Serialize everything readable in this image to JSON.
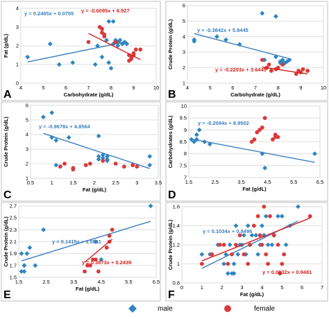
{
  "colors": {
    "male": "#2e86c1",
    "female": "#d93b3b",
    "male_line": "#3a7ebd",
    "female_line": "#d72020"
  },
  "legend": {
    "male_label": "male",
    "female_label": "female"
  },
  "chart_data": [
    {
      "panel": "A",
      "type": "scatter",
      "xlabel": "Carbohydrate (g/dL)",
      "ylabel": "Fat (g/dL)",
      "xlim": [
        4,
        10
      ],
      "ylim": [
        0,
        4
      ],
      "xticks": [
        4,
        5,
        6,
        7,
        8,
        9,
        10
      ],
      "yticks": [
        0,
        1,
        2,
        3,
        4
      ],
      "grid": "y",
      "series": [
        {
          "name": "male",
          "marker": "diamond",
          "x": [
            4.3,
            5.3,
            5.7,
            6.3,
            7.3,
            7.4,
            7.6,
            7.8,
            7.9,
            7.9,
            8.0,
            8.1,
            8.1,
            8.2,
            8.2,
            8.3,
            8.3,
            8.4,
            8.5,
            8.5,
            8.6,
            8.7
          ],
          "y": [
            1.4,
            2.1,
            1.0,
            1.1,
            1.0,
            2.0,
            1.4,
            2.3,
            3.3,
            1.1,
            0.8,
            3.3,
            2.1,
            2.2,
            2.3,
            2.2,
            2.0,
            2.3,
            2.1,
            2.1,
            2.2,
            2.1
          ],
          "fit": {
            "slope": 0.2465,
            "intercept": 0.0755,
            "equation": "y = 0.2465x + 0.0755"
          }
        },
        {
          "name": "female",
          "marker": "circle",
          "x": [
            7.0,
            7.5,
            7.6,
            7.6,
            7.7,
            7.7,
            8.2,
            8.8,
            8.8,
            8.9,
            8.9,
            9.0,
            9.0,
            9.1,
            9.3
          ],
          "y": [
            2.2,
            3.0,
            2.9,
            2.7,
            2.5,
            2.6,
            2.2,
            1.2,
            1.5,
            1.3,
            1.4,
            1.6,
            1.5,
            1.8,
            1.8
          ],
          "fit": {
            "slope": -0.6095,
            "intercept": 6.927,
            "equation": "y = -0.6095x + 6.927"
          }
        }
      ]
    },
    {
      "panel": "B",
      "type": "scatter",
      "xlabel": "Carbohydrate (g/dL)",
      "ylabel": "Crude Protein (g/dL)",
      "xlim": [
        4,
        10
      ],
      "ylim": [
        1,
        6
      ],
      "xticks": [
        4,
        5,
        6,
        7,
        8,
        9,
        10
      ],
      "yticks": [
        1,
        2,
        3,
        4,
        5,
        6
      ],
      "grid": "y",
      "series": [
        {
          "name": "male",
          "marker": "diamond",
          "x": [
            4.3,
            4.3,
            5.3,
            5.7,
            6.3,
            7.3,
            7.4,
            7.9,
            7.9,
            8.1,
            8.1,
            8.2,
            8.2,
            8.3,
            8.4,
            8.5
          ],
          "y": [
            3.8,
            3.7,
            4.0,
            3.8,
            3.5,
            5.5,
            2.5,
            2.7,
            5.3,
            2.4,
            2.3,
            2.5,
            2.4,
            2.3,
            2.4,
            2.5
          ],
          "fit": {
            "slope": -0.3842,
            "intercept": 5.8445,
            "equation": "y = -0.3842x + 5.8445"
          }
        },
        {
          "name": "female",
          "marker": "circle",
          "x": [
            7.3,
            7.5,
            7.6,
            7.7,
            7.9,
            8.0,
            8.2,
            8.8,
            8.9,
            9.0,
            9.1,
            9.3
          ],
          "y": [
            2.5,
            2.0,
            2.2,
            1.8,
            1.9,
            2.0,
            2.2,
            1.6,
            1.8,
            1.7,
            1.9,
            1.8
          ],
          "fit": {
            "slope": -0.2203,
            "intercept": 3.6445,
            "equation": "y = -0.2203x + 3.6445"
          }
        }
      ]
    },
    {
      "panel": "C",
      "type": "scatter",
      "xlabel": "Fat (g/dL)",
      "ylabel": "Crude Protein (g/dL)",
      "xlim": [
        0.5,
        3.5
      ],
      "ylim": [
        1,
        6
      ],
      "xticks": [
        0.5,
        1,
        1.5,
        2,
        2.5,
        3,
        3.5
      ],
      "yticks": [
        1,
        2,
        3,
        4,
        5,
        6
      ],
      "grid": "y",
      "series": [
        {
          "name": "male",
          "marker": "diamond",
          "x": [
            0.8,
            1.0,
            1.0,
            1.1,
            1.1,
            1.4,
            2.1,
            2.1,
            2.1,
            2.2,
            2.2,
            2.3,
            2.3,
            2.3,
            3.3,
            3.3
          ],
          "y": [
            5.2,
            5.5,
            3.8,
            3.6,
            1.9,
            3.8,
            3.9,
            2.5,
            2.3,
            2.6,
            2.4,
            2.5,
            2.3,
            2.2,
            2.5,
            1.9
          ],
          "fit": {
            "slope": -0.9678,
            "intercept": 4.8564,
            "equation": "y = -0.9678x + 4.8564"
          }
        },
        {
          "name": "female",
          "marker": "circle",
          "x": [
            1.2,
            1.3,
            1.5,
            1.5,
            1.8,
            1.9,
            2.2,
            2.5,
            2.7,
            2.9,
            2.9,
            3.0
          ],
          "y": [
            1.8,
            2.0,
            1.6,
            1.7,
            1.9,
            2.0,
            2.2,
            2.0,
            1.8,
            1.9,
            1.9,
            1.8
          ],
          "fit": null
        }
      ]
    },
    {
      "panel": "D",
      "type": "scatter",
      "xlabel": "Fat (g/dL)",
      "ylabel": "Carbohydrates (g/dL)",
      "xlim": [
        1.5,
        6.5
      ],
      "ylim": [
        7,
        10
      ],
      "xticks": [
        1.5,
        2.5,
        3.5,
        4.5,
        5.5,
        6.5
      ],
      "yticks": [
        7,
        7.5,
        8,
        8.5,
        9,
        9.5,
        10
      ],
      "grid": "y",
      "series": [
        {
          "name": "male",
          "marker": "diamond",
          "x": [
            1.6,
            1.7,
            1.8,
            1.8,
            1.9,
            2.1,
            2.3,
            4.3,
            4.4,
            6.3
          ],
          "y": [
            8.6,
            8.5,
            8.8,
            8.6,
            9.0,
            8.5,
            8.4,
            8.0,
            7.4,
            8.0
          ],
          "fit": {
            "slope": -0.2084,
            "intercept": 8.9502,
            "equation": "y = -0.2084x + 8.9502"
          }
        },
        {
          "name": "female",
          "marker": "circle",
          "x": [
            3.9,
            4.0,
            4.1,
            4.2,
            4.3,
            4.4,
            4.7,
            4.8,
            4.8,
            4.9
          ],
          "y": [
            8.5,
            8.6,
            8.9,
            9.0,
            9.1,
            9.5,
            8.6,
            8.7,
            8.8,
            8.7
          ],
          "fit": null
        }
      ]
    },
    {
      "panel": "E",
      "type": "scatter",
      "xlabel": "Fat (g/dL)",
      "ylabel": "Crude Protein (g/dL)",
      "xlim": [
        1.5,
        6.5
      ],
      "ylim": [
        1.5,
        2.7
      ],
      "xticks": [
        1.5,
        2.5,
        3.5,
        4.5,
        5.5,
        6.5
      ],
      "yticks": [
        1.5,
        1.7,
        1.9,
        2.1,
        2.3,
        2.5,
        2.7
      ],
      "grid": "y",
      "series": [
        {
          "name": "male",
          "marker": "diamond",
          "x": [
            1.6,
            1.6,
            1.7,
            1.7,
            1.7,
            1.8,
            1.9,
            2.1,
            2.4,
            4.3,
            4.5,
            6.3
          ],
          "y": [
            1.6,
            1.9,
            1.7,
            1.6,
            1.7,
            1.9,
            2.0,
            1.7,
            2.3,
            2.1,
            1.8,
            2.7
          ],
          "fit": {
            "slope": 0.1415,
            "intercept": 1.5511,
            "equation": "y = 0.1415x + 1.5511"
          }
        },
        {
          "name": "female",
          "marker": "circle",
          "x": [
            3.9,
            4.0,
            4.1,
            4.2,
            4.3,
            4.4,
            4.7,
            4.8,
            4.8,
            4.9
          ],
          "y": [
            1.6,
            1.7,
            1.7,
            1.8,
            1.8,
            1.6,
            2.0,
            2.2,
            2.1,
            2.3
          ],
          "fit": {
            "slope": 0.3873,
            "intercept": 0.2439,
            "equation": "y = 0.3873x + 0.2439"
          }
        }
      ]
    },
    {
      "panel": "F",
      "type": "scatter",
      "xlabel": "Fat (g/dL)",
      "ylabel": "Crude Protein (g/dL)",
      "xlim": [
        0,
        7
      ],
      "ylim": [
        0.8,
        1.6
      ],
      "xticks": [
        0,
        1,
        2,
        3,
        4,
        5,
        6,
        7
      ],
      "yticks": [
        0.8,
        1,
        1.2,
        1.4,
        1.6
      ],
      "grid": "y",
      "series": [
        {
          "name": "male",
          "marker": "diamond",
          "x": [
            1.0,
            1.4,
            1.8,
            2.1,
            2.2,
            2.3,
            2.4,
            2.5,
            2.6,
            2.6,
            2.7,
            2.8,
            2.9,
            3.0,
            3.1,
            3.2,
            3.3,
            3.4,
            3.5,
            3.6,
            3.7,
            3.8,
            3.9,
            4.0,
            4.1,
            4.2,
            4.3,
            4.5,
            4.6,
            4.8,
            5.0,
            5.2,
            5.4,
            5.8
          ],
          "y": [
            1.1,
            1.1,
            1.2,
            1.0,
            1.1,
            0.9,
            1.2,
            0.9,
            1.0,
            0.9,
            1.4,
            1.1,
            1.2,
            1.2,
            1.3,
            1.1,
            1.4,
            1.2,
            1.3,
            1.4,
            1.3,
            1.1,
            1.2,
            1.4,
            1.3,
            1.5,
            1.2,
            1.2,
            1.3,
            1.5,
            1.5,
            1.2,
            1.4,
            1.6
          ],
          "fit": {
            "slope": 0.1034,
            "intercept": 0.8496,
            "equation": "y = 0.1034x + 0.8496"
          }
        },
        {
          "name": "female",
          "marker": "circle",
          "x": [
            1.0,
            1.5,
            1.9,
            2.1,
            2.3,
            2.5,
            2.7,
            2.9,
            3.1,
            3.3,
            3.4,
            3.6,
            3.8,
            3.9,
            4.0,
            4.1,
            4.2,
            4.3,
            4.4,
            4.6,
            4.8,
            4.9,
            5.0,
            5.1,
            6.4
          ],
          "y": [
            1.0,
            1.1,
            1.2,
            1.2,
            1.0,
            1.1,
            1.2,
            1.3,
            1.1,
            1.0,
            1.2,
            1.4,
            1.5,
            1.3,
            1.2,
            1.6,
            1.1,
            1.0,
            1.5,
            1.3,
            1.2,
            0.9,
            1.0,
            1.1,
            1.5
          ],
          "fit": {
            "slope": 0.0832,
            "intercept": 0.9481,
            "equation": "y = 0.0832x + 0.9481"
          }
        }
      ]
    }
  ]
}
